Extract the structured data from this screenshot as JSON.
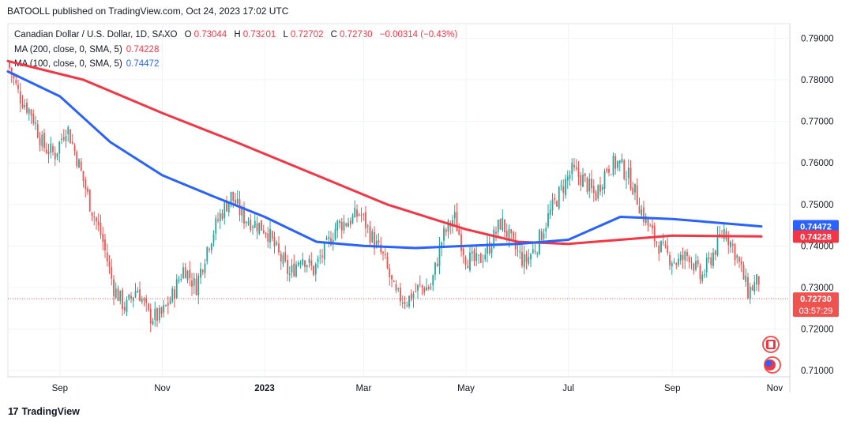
{
  "header": {
    "published": "BATOOLL published on TradingView.com, Oct 24, 2023 17:02 UTC"
  },
  "legend": {
    "symbol": "Canadian Dollar / U.S. Dollar, 1D, SAXO",
    "o_label": "O",
    "o_value": "0.73044",
    "h_label": "H",
    "h_value": "0.73201",
    "l_label": "L",
    "l_value": "0.72702",
    "c_label": "C",
    "c_value": "0.72730",
    "change": "−0.00314 (−0.43%)",
    "ma200_label": "MA (200, close, 0, SMA, 5)",
    "ma200_value": "0.74228",
    "ma100_label": "MA (100, close, 0, SMA, 5)",
    "ma100_value": "0.74472"
  },
  "price_tags": {
    "ma100": "0.74472",
    "ma200": "0.74228",
    "last": "0.72730",
    "countdown": "03:57:29"
  },
  "branding": {
    "logo": "17",
    "name": "TradingView"
  },
  "colors": {
    "up": "#26a69a",
    "down": "#ef5350",
    "ma200": "#f23645",
    "ma100": "#2962ff",
    "grid": "#f0f3fa",
    "axis_text": "#131722"
  },
  "icons": [
    "canada-flag-icon",
    "usa-flag-icon"
  ],
  "chart_data": {
    "type": "candlestick",
    "instrument": "Canadian Dollar / U.S. Dollar",
    "timeframe": "1D",
    "y_ticks": [
      "0.79000",
      "0.78000",
      "0.77000",
      "0.76000",
      "0.75000",
      "0.74000",
      "0.73000",
      "0.72000",
      "0.71000"
    ],
    "ylim": [
      0.7085,
      0.7935
    ],
    "x_ticks": [
      "Sep",
      "Nov",
      "2023",
      "Mar",
      "May",
      "Jul",
      "Sep",
      "Nov"
    ],
    "close_path": [
      {
        "x": "2022-08-01",
        "y": 0.784
      },
      {
        "x": "2022-08-08",
        "y": 0.776
      },
      {
        "x": "2022-08-15",
        "y": 0.772
      },
      {
        "x": "2022-08-22",
        "y": 0.764
      },
      {
        "x": "2022-08-29",
        "y": 0.762
      },
      {
        "x": "2022-09-05",
        "y": 0.769
      },
      {
        "x": "2022-09-12",
        "y": 0.76
      },
      {
        "x": "2022-09-19",
        "y": 0.75
      },
      {
        "x": "2022-09-26",
        "y": 0.742
      },
      {
        "x": "2022-10-03",
        "y": 0.73
      },
      {
        "x": "2022-10-10",
        "y": 0.725
      },
      {
        "x": "2022-10-17",
        "y": 0.73
      },
      {
        "x": "2022-10-24",
        "y": 0.723
      },
      {
        "x": "2022-10-31",
        "y": 0.723
      },
      {
        "x": "2022-11-07",
        "y": 0.728
      },
      {
        "x": "2022-11-14",
        "y": 0.735
      },
      {
        "x": "2022-11-21",
        "y": 0.73
      },
      {
        "x": "2022-11-28",
        "y": 0.74
      },
      {
        "x": "2022-12-05",
        "y": 0.747
      },
      {
        "x": "2022-12-12",
        "y": 0.752
      },
      {
        "x": "2022-12-19",
        "y": 0.747
      },
      {
        "x": "2023-01-02",
        "y": 0.744
      },
      {
        "x": "2023-01-09",
        "y": 0.738
      },
      {
        "x": "2023-01-16",
        "y": 0.733
      },
      {
        "x": "2023-01-23",
        "y": 0.738
      },
      {
        "x": "2023-01-30",
        "y": 0.734
      },
      {
        "x": "2023-02-06",
        "y": 0.739
      },
      {
        "x": "2023-02-13",
        "y": 0.745
      },
      {
        "x": "2023-02-20",
        "y": 0.746
      },
      {
        "x": "2023-02-27",
        "y": 0.748
      },
      {
        "x": "2023-03-06",
        "y": 0.742
      },
      {
        "x": "2023-03-13",
        "y": 0.737
      },
      {
        "x": "2023-03-20",
        "y": 0.728
      },
      {
        "x": "2023-03-27",
        "y": 0.727
      },
      {
        "x": "2023-04-03",
        "y": 0.73
      },
      {
        "x": "2023-04-10",
        "y": 0.73
      },
      {
        "x": "2023-04-17",
        "y": 0.742
      },
      {
        "x": "2023-04-24",
        "y": 0.747
      },
      {
        "x": "2023-05-01",
        "y": 0.737
      },
      {
        "x": "2023-05-08",
        "y": 0.736
      },
      {
        "x": "2023-05-15",
        "y": 0.74
      },
      {
        "x": "2023-05-22",
        "y": 0.746
      },
      {
        "x": "2023-05-29",
        "y": 0.74
      },
      {
        "x": "2023-06-05",
        "y": 0.736
      },
      {
        "x": "2023-06-12",
        "y": 0.74
      },
      {
        "x": "2023-06-19",
        "y": 0.747
      },
      {
        "x": "2023-06-26",
        "y": 0.753
      },
      {
        "x": "2023-07-03",
        "y": 0.758
      },
      {
        "x": "2023-07-10",
        "y": 0.756
      },
      {
        "x": "2023-07-17",
        "y": 0.752
      },
      {
        "x": "2023-07-24",
        "y": 0.759
      },
      {
        "x": "2023-07-31",
        "y": 0.76
      },
      {
        "x": "2023-08-07",
        "y": 0.756
      },
      {
        "x": "2023-08-14",
        "y": 0.748
      },
      {
        "x": "2023-08-21",
        "y": 0.742
      },
      {
        "x": "2023-08-28",
        "y": 0.738
      },
      {
        "x": "2023-09-04",
        "y": 0.736
      },
      {
        "x": "2023-09-11",
        "y": 0.738
      },
      {
        "x": "2023-09-18",
        "y": 0.732
      },
      {
        "x": "2023-09-25",
        "y": 0.738
      },
      {
        "x": "2023-10-02",
        "y": 0.744
      },
      {
        "x": "2023-10-09",
        "y": 0.738
      },
      {
        "x": "2023-10-16",
        "y": 0.729
      },
      {
        "x": "2023-10-23",
        "y": 0.732
      },
      {
        "x": "2023-10-24",
        "y": 0.7273
      }
    ],
    "series": [
      {
        "name": "MA (200, close, 0, SMA, 5)",
        "values": [
          {
            "x": "2022-08-01",
            "y": 0.7845
          },
          {
            "x": "2022-09-15",
            "y": 0.78
          },
          {
            "x": "2022-11-01",
            "y": 0.772
          },
          {
            "x": "2022-12-15",
            "y": 0.765
          },
          {
            "x": "2023-02-01",
            "y": 0.757
          },
          {
            "x": "2023-03-15",
            "y": 0.75
          },
          {
            "x": "2023-05-01",
            "y": 0.744
          },
          {
            "x": "2023-06-01",
            "y": 0.741
          },
          {
            "x": "2023-07-01",
            "y": 0.7405
          },
          {
            "x": "2023-08-01",
            "y": 0.7415
          },
          {
            "x": "2023-09-01",
            "y": 0.7425
          },
          {
            "x": "2023-10-24",
            "y": 0.7423
          }
        ]
      },
      {
        "name": "MA (100, close, 0, SMA, 5)",
        "values": [
          {
            "x": "2022-08-01",
            "y": 0.782
          },
          {
            "x": "2022-09-01",
            "y": 0.776
          },
          {
            "x": "2022-10-01",
            "y": 0.765
          },
          {
            "x": "2022-11-01",
            "y": 0.757
          },
          {
            "x": "2022-12-01",
            "y": 0.752
          },
          {
            "x": "2023-01-01",
            "y": 0.747
          },
          {
            "x": "2023-02-01",
            "y": 0.741
          },
          {
            "x": "2023-03-01",
            "y": 0.74
          },
          {
            "x": "2023-04-01",
            "y": 0.7395
          },
          {
            "x": "2023-05-01",
            "y": 0.74
          },
          {
            "x": "2023-06-01",
            "y": 0.7405
          },
          {
            "x": "2023-07-01",
            "y": 0.7415
          },
          {
            "x": "2023-08-01",
            "y": 0.747
          },
          {
            "x": "2023-09-01",
            "y": 0.7465
          },
          {
            "x": "2023-10-24",
            "y": 0.7447
          }
        ]
      }
    ]
  }
}
